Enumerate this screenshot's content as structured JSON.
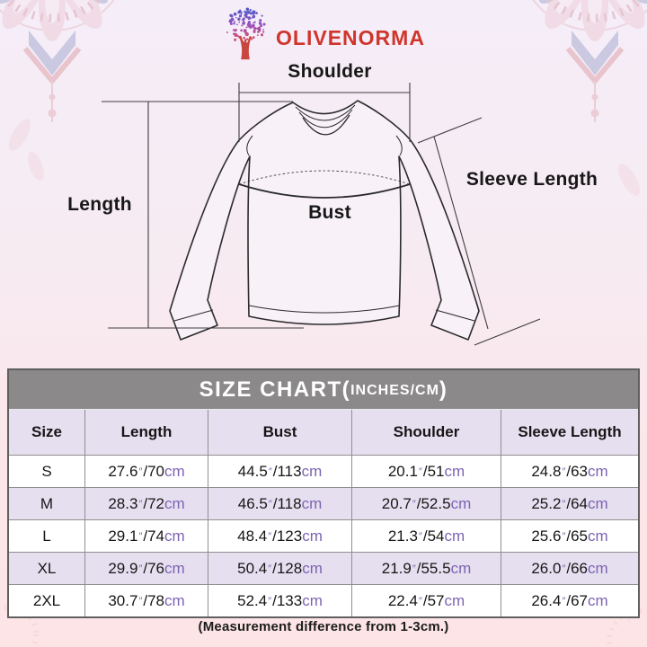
{
  "brand": {
    "name": "OLIVENORMA",
    "logo_icon": "gradient-tree"
  },
  "diagram": {
    "labels": {
      "shoulder": "Shoulder",
      "length": "Length",
      "bust": "Bust",
      "sleeve_length": "Sleeve Length"
    }
  },
  "size_chart": {
    "title": {
      "main": "SIZE CHART",
      "paren_open": "(",
      "sub": "INCHES/CM",
      "paren_close": ")"
    },
    "columns": [
      "Size",
      "Length",
      "Bust",
      "Shoulder",
      "Sleeve Length"
    ],
    "units": {
      "inch_mark": "″",
      "separator": "/",
      "cm_label": "cm"
    },
    "rows": [
      {
        "size": "S",
        "length": {
          "in": "27.6",
          "cm": "70"
        },
        "bust": {
          "in": "44.5",
          "cm": "113"
        },
        "shoulder": {
          "in": "20.1",
          "cm": "51"
        },
        "sleeve": {
          "in": "24.8",
          "cm": "63"
        }
      },
      {
        "size": "M",
        "length": {
          "in": "28.3",
          "cm": "72"
        },
        "bust": {
          "in": "46.5",
          "cm": "118"
        },
        "shoulder": {
          "in": "20.7",
          "cm": "52.5"
        },
        "sleeve": {
          "in": "25.2",
          "cm": "64"
        }
      },
      {
        "size": "L",
        "length": {
          "in": "29.1",
          "cm": "74"
        },
        "bust": {
          "in": "48.4",
          "cm": "123"
        },
        "shoulder": {
          "in": "21.3",
          "cm": "54"
        },
        "sleeve": {
          "in": "25.6",
          "cm": "65"
        }
      },
      {
        "size": "XL",
        "length": {
          "in": "29.9",
          "cm": "76"
        },
        "bust": {
          "in": "50.4",
          "cm": "128"
        },
        "shoulder": {
          "in": "21.9",
          "cm": "55.5"
        },
        "sleeve": {
          "in": "26.0",
          "cm": "66"
        }
      },
      {
        "size": "2XL",
        "length": {
          "in": "30.7",
          "cm": "78"
        },
        "bust": {
          "in": "52.4",
          "cm": "133"
        },
        "shoulder": {
          "in": "22.4",
          "cm": "57"
        },
        "sleeve": {
          "in": "26.4",
          "cm": "67"
        }
      }
    ],
    "note": "(Measurement difference from 1-3cm.)"
  },
  "colors": {
    "brand_red": "#cf352c",
    "table_title_bg": "#8b8989",
    "row_lavender": "#e6dff0",
    "unit_purple": "#7d63b2",
    "line_ink": "#2b2b2b"
  }
}
